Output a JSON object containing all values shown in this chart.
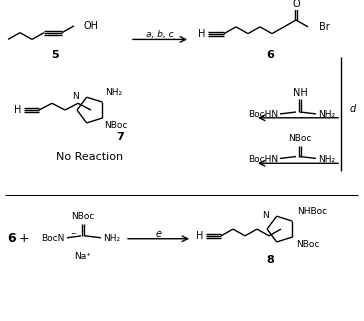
{
  "bg_color": "#ffffff",
  "fig_width": 3.64,
  "fig_height": 3.21,
  "dpi": 100,
  "structures": {
    "compound5_label": "5",
    "compound6_label": "6",
    "compound7_label": "7",
    "compound8_label": "8",
    "no_reaction": "No Reaction",
    "arrow_abc_label": "a, b, c",
    "arrow_d_label": "d",
    "arrow_e_label": "e"
  }
}
